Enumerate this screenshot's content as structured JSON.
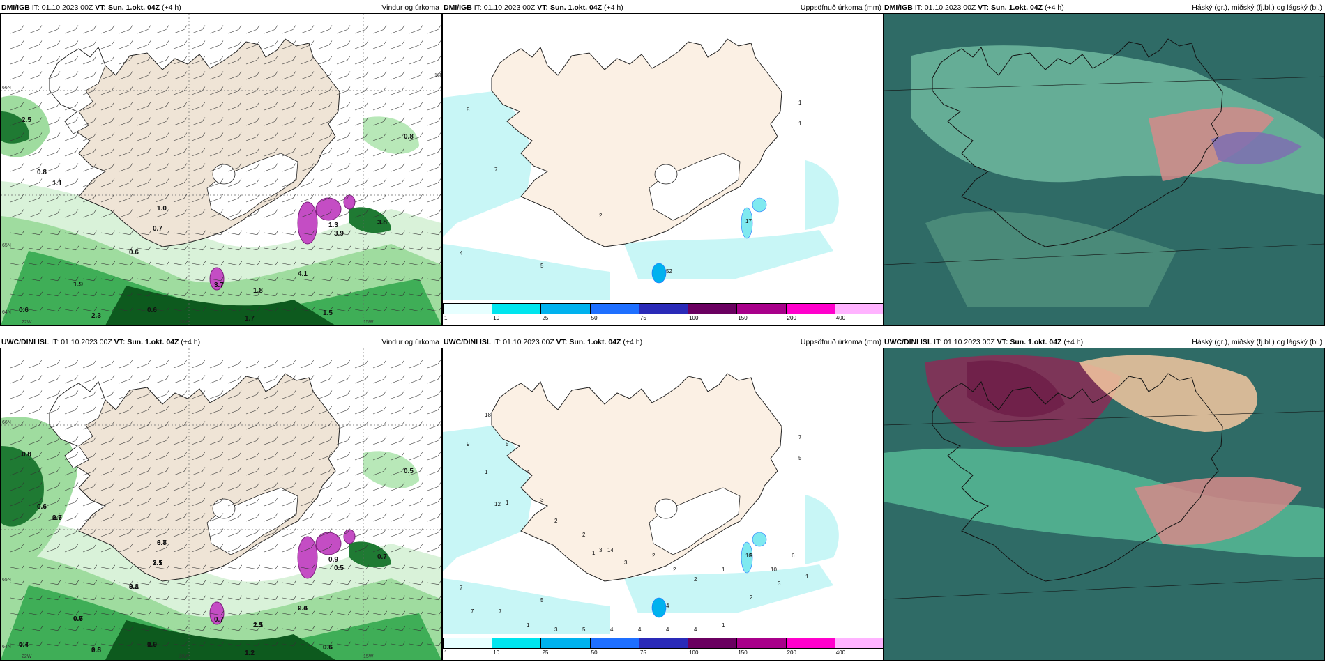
{
  "panels": [
    {
      "model": "DMI/IGB",
      "it_label": "IT:",
      "it": "01.10.2023 00Z",
      "vt_label": "VT:",
      "vt": "Sun. 1.okt. 04Z",
      "lead": "(+4 h)",
      "field": "Vindur og úrkoma",
      "type": "wind",
      "numbers": [
        "2.5",
        "0.8",
        "1.1",
        "1.0",
        "0.7",
        "0.6",
        "1.9",
        "0.6",
        "2.3",
        "0.6",
        "1.7",
        "1.8",
        "4.1",
        "1.5",
        "1.3",
        "3.8",
        "3.9",
        "3.7",
        "0.8"
      ],
      "axis": [
        "66N",
        "65N",
        "64N",
        "22W",
        "20W",
        "15W",
        "16N"
      ]
    },
    {
      "model": "DMI/IGB",
      "it_label": "IT:",
      "it": "01.10.2023 00Z",
      "vt_label": "VT:",
      "vt": "Sun. 1.okt. 04Z",
      "lead": "(+4 h)",
      "field": "Uppsöfnuð úrkoma (mm)",
      "type": "precip",
      "numbers": [
        "8",
        "7",
        "1",
        "1",
        "2",
        "4",
        "5",
        "52",
        "17"
      ]
    },
    {
      "model": "DMI/IGB",
      "it_label": "IT:",
      "it": "01.10.2023 00Z",
      "vt_label": "VT:",
      "vt": "Sun. 1.okt. 04Z",
      "lead": "(+4 h)",
      "field": "Háský (gr.), miðský (fj.bl.) og lágský (bl.)",
      "type": "cloud",
      "numbers": []
    },
    {
      "model": "UWC/DINI ISL",
      "it_label": "IT:",
      "it": "01.10.2023 00Z",
      "vt_label": "VT:",
      "vt": "Sun. 1.okt. 04Z",
      "lead": "(+4 h)",
      "field": "Vindur og úrkoma",
      "type": "wind",
      "numbers": [
        "0.6",
        "0.6",
        "0.7",
        "0.8",
        "3.5",
        "3.1",
        "0.6",
        "0.7",
        "0.8",
        "1.0",
        "1.2",
        "2.1",
        "0.6",
        "0.6",
        "0.9",
        "0.7",
        "0.5",
        "0.7",
        "0.5",
        "0.8",
        "0.6",
        "2.6",
        "3.7",
        "2.1",
        "0.8",
        "0.7",
        "4.4",
        "2.5",
        "0.9",
        "1.2",
        "1.5",
        "2.4",
        "0.6"
      ],
      "axis": [
        "66N",
        "65N",
        "64N",
        "22W",
        "20W",
        "15W"
      ]
    },
    {
      "model": "UWC/DINI ISL",
      "it_label": "IT:",
      "it": "01.10.2023 00Z",
      "vt_label": "VT:",
      "vt": "Sun. 1.okt. 04Z",
      "lead": "(+4 h)",
      "field": "Uppsöfnuð úrkoma (mm)",
      "type": "precip",
      "numbers": [
        "9",
        "12",
        "7",
        "5",
        "3",
        "7",
        "5",
        "4",
        "10",
        "18",
        "5",
        "1",
        "4",
        "1",
        "3",
        "2",
        "2",
        "1",
        "14",
        "3",
        "2",
        "2",
        "2",
        "1",
        "9",
        "10",
        "6",
        "7",
        "7",
        "1",
        "3",
        "5",
        "4",
        "4",
        "4",
        "4",
        "1",
        "2",
        "3",
        "1"
      ]
    },
    {
      "model": "UWC/DINI ISL",
      "it_label": "IT:",
      "it": "01.10.2023 00Z",
      "vt_label": "VT:",
      "vt": "Sun. 1.okt. 04Z",
      "lead": "(+4 h)",
      "field": "Háský (gr.), miðský (fj.bl.) og lágský (bl.)",
      "type": "cloud",
      "numbers": []
    }
  ],
  "colorbar": {
    "ticks": [
      "1",
      "10",
      "25",
      "50",
      "75",
      "100",
      "150",
      "200",
      "400"
    ],
    "colors": [
      "#e6ffff",
      "#00e5ee",
      "#00b2ee",
      "#1e6fff",
      "#2a2ab8",
      "#6a0060",
      "#a8008a",
      "#ff00cc",
      "#ffb3ff"
    ]
  }
}
